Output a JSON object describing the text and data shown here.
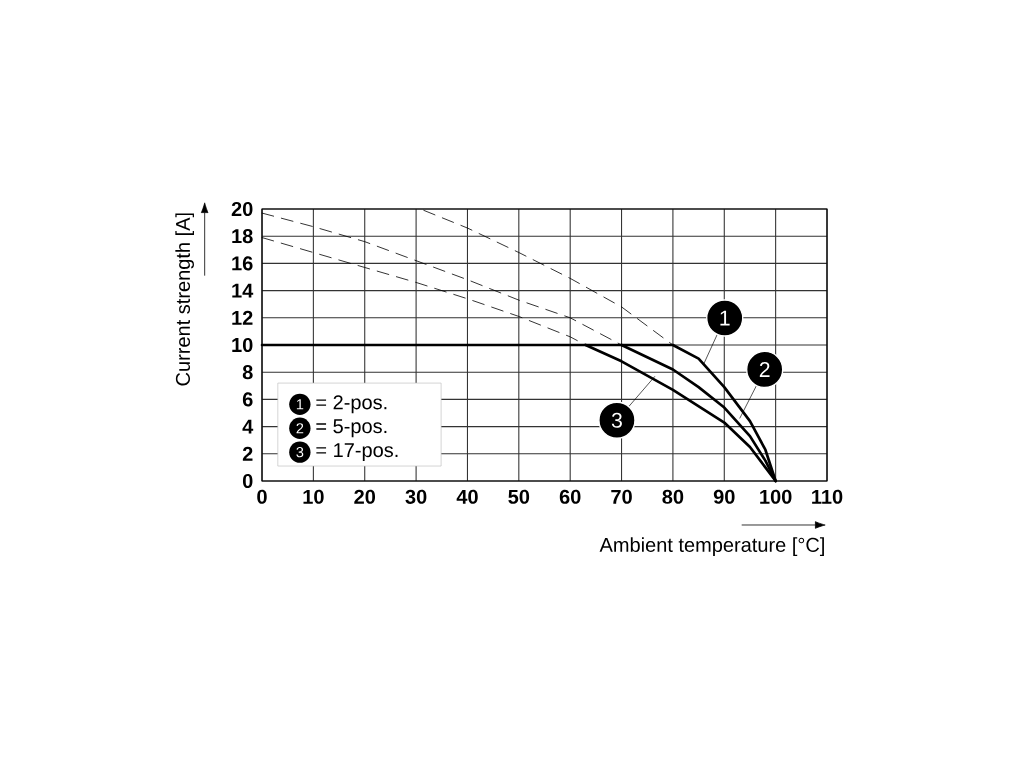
{
  "chart_data": {
    "type": "line",
    "xlabel": "Ambient temperature [°C]",
    "ylabel": "Current strength [A]",
    "xlim": [
      0,
      110
    ],
    "ylim": [
      0,
      20
    ],
    "xticks": [
      0,
      10,
      20,
      30,
      40,
      50,
      60,
      70,
      80,
      90,
      100,
      110
    ],
    "yticks": [
      0,
      2,
      4,
      6,
      8,
      10,
      12,
      14,
      16,
      18,
      20
    ],
    "grid": true,
    "legend": "bottom left",
    "marker": "none",
    "annotations": [
      {
        "text": "1",
        "x": 86,
        "y": 8.6
      },
      {
        "text": "2",
        "x": 93,
        "y": 4.6
      },
      {
        "text": "3",
        "x": 76.5,
        "y": 7.7
      }
    ],
    "series": [
      {
        "name": "= 2-pos.",
        "color": "#000000",
        "line_style": "solid",
        "x": [
          0,
          80,
          85,
          90,
          95,
          98,
          100
        ],
        "values": [
          10,
          10,
          9.0,
          6.9,
          4.4,
          2.3,
          0
        ]
      },
      {
        "name": "= 5-pos.",
        "color": "#000000",
        "line_style": "solid",
        "x": [
          70,
          75,
          80,
          85,
          90,
          95,
          98,
          100
        ],
        "values": [
          10,
          9.1,
          8.2,
          6.9,
          5.4,
          3.3,
          1.5,
          0
        ]
      },
      {
        "name": "= 17-pos.",
        "color": "#000000",
        "line_style": "solid",
        "x": [
          63,
          70,
          80,
          90,
          95,
          98,
          100
        ],
        "values": [
          10,
          8.8,
          6.7,
          4.3,
          2.5,
          1.0,
          0
        ]
      },
      {
        "color": "#000000",
        "line_style": "dashed",
        "x": [
          31.5,
          40,
          50,
          60,
          70,
          80
        ],
        "values": [
          19.9,
          18.6,
          16.8,
          14.9,
          12.8,
          10
        ]
      },
      {
        "color": "#000000",
        "line_style": "dashed",
        "x": [
          0,
          10,
          20,
          30,
          40,
          50,
          60,
          70
        ],
        "values": [
          19.7,
          18.7,
          17.6,
          16.2,
          14.8,
          13.3,
          12.0,
          10
        ]
      },
      {
        "color": "#000000",
        "line_style": "dashed",
        "x": [
          0,
          10,
          20,
          30,
          40,
          50,
          60,
          63
        ],
        "values": [
          17.9,
          16.8,
          15.7,
          14.6,
          13.4,
          12.1,
          10.6,
          10
        ]
      }
    ]
  }
}
